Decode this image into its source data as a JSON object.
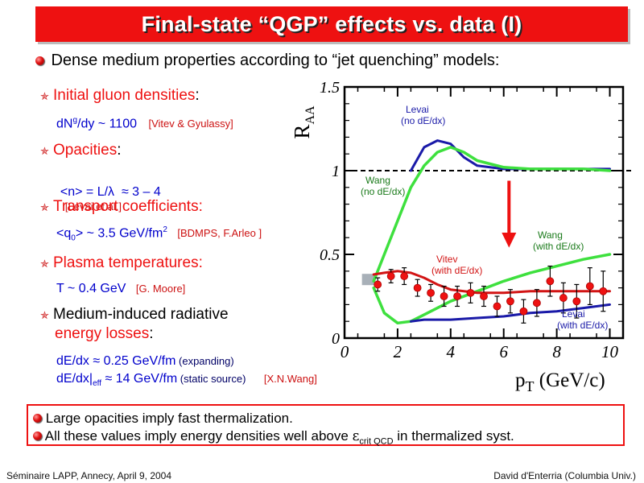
{
  "title": "Final-state “QGP” effects vs. data (I)",
  "intro": {
    "highlight": "Dense medium",
    "rest": " properties according to “jet quenching” models:"
  },
  "items": [
    {
      "heading_red": "Initial gluon densities",
      "heading_tail": ":",
      "value_pre": "dN",
      "value_sup": "g",
      "value_post": "/dy ~ 1100",
      "ref": "[Vitev & Gyulassy]"
    },
    {
      "heading_red": "Opacities",
      "heading_tail": ":",
      "value": "<n> = L/λ  ≈ 3 – 4",
      "ref": "[Levai et al.]"
    },
    {
      "heading_red": "Transport coefficients:",
      "value_pre": "<q",
      "value_sub": "0",
      "value_mid": "> ~ 3.5 GeV/fm",
      "value_sup": "2",
      "ref": "[BDMPS, F.Arleo ]"
    },
    {
      "heading_red": "Plasma temperatures:",
      "value": "T ~ 0.4 GeV",
      "ref": "[G. Moore]"
    },
    {
      "heading_line1": "Medium-induced radiative",
      "heading_red": "energy losses",
      "heading_tail": ":",
      "value1_main": "dE/dx ≈ 0.25 GeV/fm",
      "value1_note": " (expanding)",
      "value2_pre": "dE/dx|",
      "value2_sub": "eff",
      "value2_main": " ≈ 14 GeV/fm",
      "value2_note": " (static source)",
      "ref": "[X.N.Wang]"
    }
  ],
  "summary": {
    "line1": "Large opacities imply fast thermalization.",
    "line2_pre": "All these values imply energy densities well above ",
    "line2_eps": "ε",
    "line2_sub": "crit QCD",
    "line2_post": " in thermalized syst."
  },
  "footer": {
    "left": "Séminaire LAPP, Annecy, April 9, 2004",
    "right": "David d'Enterria (Columbia Univ.)"
  },
  "colors": {
    "title_bg": "#ee1111",
    "accent_red": "#ee1111",
    "value_blue": "#0000cc",
    "curve_blue": "#1a1aa8",
    "curve_green": "#3ee03e",
    "curve_red": "#d21414"
  },
  "chart_data": {
    "type": "line",
    "xlabel": "p_T (GeV/c)",
    "ylabel": "R_AA",
    "xlim": [
      0,
      10.5
    ],
    "ylim": [
      0,
      1.5
    ],
    "x_ticks": [
      0,
      2,
      4,
      6,
      8,
      10
    ],
    "y_ticks": [
      0,
      0.5,
      1,
      1.5
    ],
    "reference_line": 1,
    "series": [
      {
        "name": "Levai (no dE/dx)",
        "color": "#1a1aa8",
        "x": [
          2.5,
          3.0,
          3.5,
          4.0,
          4.5,
          5.0,
          6.0,
          7.0,
          8.0,
          9.0,
          10.0
        ],
        "y": [
          1.0,
          1.14,
          1.18,
          1.16,
          1.08,
          1.03,
          1.01,
          1.01,
          1.01,
          1.01,
          1.01
        ]
      },
      {
        "name": "Wang (no dE/dx)",
        "color": "#3ee03e",
        "x": [
          1.1,
          1.5,
          2.0,
          2.5,
          3.0,
          3.5,
          4.0,
          4.5,
          5.0,
          6.0,
          7.0,
          8.0,
          9.0,
          10.0
        ],
        "y": [
          0.34,
          0.5,
          0.7,
          0.9,
          1.03,
          1.11,
          1.14,
          1.11,
          1.06,
          1.02,
          1.01,
          1.01,
          1.01,
          1.0
        ]
      },
      {
        "name": "Wang (with dE/dx)",
        "color": "#3ee03e",
        "x": [
          1.1,
          1.5,
          2.0,
          2.5,
          3.0,
          4.0,
          5.0,
          6.0,
          7.0,
          8.0,
          9.0,
          10.0
        ],
        "y": [
          0.3,
          0.15,
          0.09,
          0.1,
          0.14,
          0.22,
          0.28,
          0.34,
          0.39,
          0.43,
          0.47,
          0.5
        ]
      },
      {
        "name": "Vitev (with dE/dx)",
        "color": "#d21414",
        "x": [
          1.1,
          1.5,
          2.0,
          2.5,
          3.0,
          3.5,
          4.0,
          5.0,
          6.0,
          7.0,
          8.0,
          9.0,
          10.0
        ],
        "y": [
          0.38,
          0.39,
          0.4,
          0.39,
          0.36,
          0.32,
          0.29,
          0.27,
          0.27,
          0.28,
          0.28,
          0.28,
          0.28
        ]
      },
      {
        "name": "Levai (with dE/dx)",
        "color": "#1a1aa8",
        "x": [
          2.5,
          3.0,
          4.0,
          5.0,
          6.0,
          7.0,
          8.0,
          9.0,
          10.0
        ],
        "y": [
          0.1,
          0.11,
          0.11,
          0.12,
          0.13,
          0.15,
          0.16,
          0.18,
          0.2
        ]
      },
      {
        "name": "data",
        "color": "#ee1111",
        "x": [
          1.25,
          1.75,
          2.25,
          2.75,
          3.25,
          3.75,
          4.25,
          4.75,
          5.25,
          5.75,
          6.25,
          6.75,
          7.25,
          7.75,
          8.25,
          8.75,
          9.25,
          9.75
        ],
        "y": [
          0.32,
          0.37,
          0.37,
          0.3,
          0.27,
          0.25,
          0.25,
          0.27,
          0.25,
          0.19,
          0.22,
          0.16,
          0.21,
          0.34,
          0.24,
          0.22,
          0.31,
          0.28
        ],
        "err": [
          0.04,
          0.04,
          0.05,
          0.05,
          0.05,
          0.06,
          0.06,
          0.06,
          0.06,
          0.06,
          0.07,
          0.07,
          0.08,
          0.09,
          0.09,
          0.1,
          0.11,
          0.12
        ]
      }
    ],
    "annotations": [
      {
        "text_line1": "Levai",
        "text_line2": "(no dE/dx)"
      },
      {
        "text_line1": "Wang",
        "text_line2": "(no dE/dx)"
      },
      {
        "text_line1": "Wang",
        "text_line2": "(with dE/dx)"
      },
      {
        "text_line1": "Vitev",
        "text_line2": "(with dE/dx)"
      },
      {
        "text_line1": "Levai",
        "text_line2": "(with dE/dx)"
      }
    ]
  }
}
